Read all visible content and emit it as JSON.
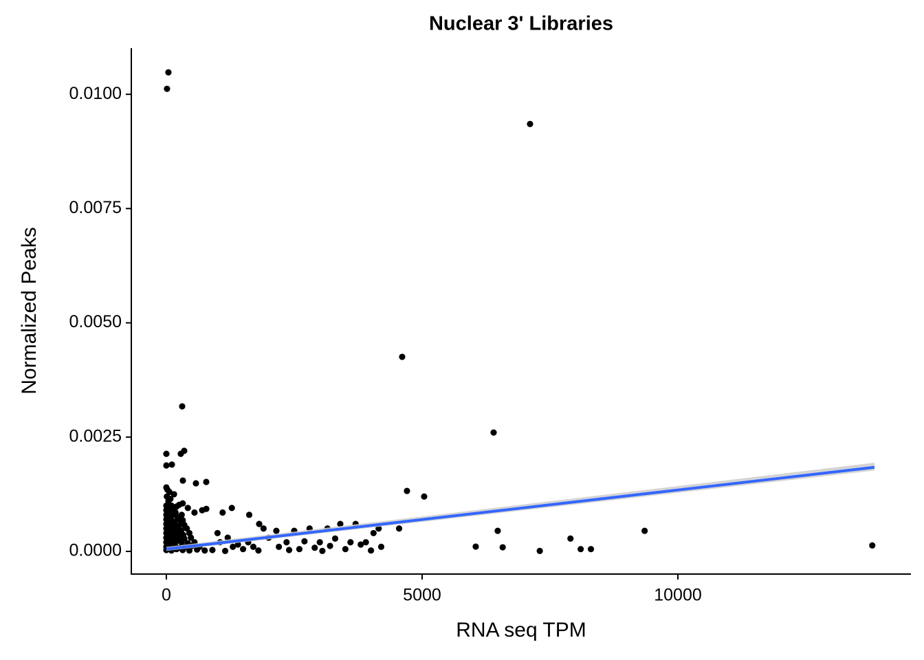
{
  "chart_data": {
    "type": "scatter",
    "title": "Nuclear 3' Libraries",
    "x_label": "RNA seq TPM",
    "y_label": "Normalized Peaks",
    "color": "#000000",
    "xlim": [
      -685,
      14556
    ],
    "ylim": [
      -0.000496,
      0.01101
    ],
    "xticks": [
      0,
      5000,
      10000
    ],
    "yticks": [
      {
        "value": 0,
        "label": "0.0000"
      },
      {
        "value": 0.0025,
        "label": "0.0025"
      },
      {
        "value": 0.005,
        "label": "0.0050"
      },
      {
        "value": 0.0075,
        "label": "0.0075"
      },
      {
        "value": 0.01,
        "label": "0.0100"
      }
    ],
    "x": [
      40,
      13,
      7110,
      4610,
      309,
      6398,
      0,
      349,
      282,
      0,
      108,
      4704,
      5040,
      323,
      578,
      780,
      6048,
      6478,
      6575,
      7300,
      7900,
      8100,
      8300,
      9350,
      13800,
      0,
      20,
      60,
      10,
      40,
      80,
      150,
      0,
      30,
      100,
      200,
      250,
      0,
      50,
      120,
      180,
      0,
      70,
      140,
      220,
      300,
      0,
      40,
      90,
      160,
      240,
      320,
      0,
      60,
      130,
      200,
      280,
      350,
      0,
      50,
      110,
      170,
      230,
      290,
      400,
      0,
      80,
      150,
      210,
      270,
      330,
      450,
      0,
      40,
      100,
      190,
      260,
      350,
      480,
      0,
      60,
      120,
      200,
      300,
      420,
      550,
      0,
      90,
      180,
      260,
      380,
      500,
      650,
      0,
      100,
      200,
      320,
      450,
      600,
      750,
      900,
      320,
      420,
      550,
      700,
      780,
      1100,
      1280,
      1620,
      1000,
      1050,
      1200,
      1300,
      1400,
      1500,
      1600,
      1700,
      1815,
      1900,
      2000,
      2150,
      2200,
      2350,
      2500,
      2600,
      2700,
      2800,
      2900,
      3000,
      3150,
      3200,
      3300,
      3400,
      3500,
      3600,
      3700,
      3800,
      3900,
      4050,
      4150,
      4200,
      4000,
      4550,
      2400,
      1800,
      1150,
      3050
    ],
    "values": [
      0.01048,
      0.01012,
      0.00935,
      0.004256,
      0.003173,
      0.0026,
      0.002135,
      0.0022,
      0.002135,
      0.00188,
      0.0019,
      0.001323,
      0.0012,
      0.00155,
      0.00149,
      0.00152,
      0.000105,
      0.00045,
      9e-05,
      1e-05,
      0.00028,
      5e-05,
      5e-05,
      0.00045,
      0.00013,
      0.0014,
      0.00135,
      0.0013,
      0.0012,
      0.0011,
      0.00115,
      0.00125,
      0.001,
      0.00095,
      0.001,
      0.00098,
      0.00102,
      0.0009,
      0.00088,
      0.0009,
      0.00085,
      0.0008,
      0.00078,
      0.0008,
      0.00075,
      0.0008,
      0.0007,
      0.00068,
      0.0007,
      0.00065,
      0.0007,
      0.00068,
      0.0006,
      0.00058,
      0.0006,
      0.00055,
      0.0006,
      0.00058,
      0.0005,
      0.00048,
      0.0005,
      0.00045,
      0.0005,
      0.00046,
      0.0005,
      0.0004,
      0.0004,
      0.00038,
      0.0004,
      0.00042,
      0.00036,
      0.0004,
      0.0003,
      0.00028,
      0.0003,
      0.00032,
      0.0003,
      0.00028,
      0.0003,
      0.0002,
      0.00018,
      0.0002,
      0.00022,
      0.0002,
      0.00018,
      0.0002,
      0.0001,
      0.00012,
      0.0001,
      8e-05,
      0.0001,
      0.00012,
      0.0001,
      3e-05,
      2e-05,
      5e-05,
      3e-05,
      2e-05,
      4e-05,
      2e-05,
      3e-05,
      0.00105,
      0.00095,
      0.00085,
      0.0009,
      0.00093,
      0.00085,
      0.00095,
      0.0008,
      0.0004,
      0.0002,
      0.0003,
      0.0001,
      0.00015,
      5e-05,
      0.0002,
      0.0001,
      0.0006,
      0.0005,
      0.0003,
      0.00045,
      0.0001,
      0.0002,
      0.00045,
      5e-05,
      0.00022,
      0.0005,
      8e-05,
      0.0002,
      0.0005,
      0.00012,
      0.00028,
      0.0006,
      5e-05,
      0.0002,
      0.0006,
      0.00015,
      0.0002,
      0.0004,
      0.0005,
      0.0001,
      2e-05,
      0.0005,
      3e-05,
      2e-05,
      1e-05,
      1e-05
    ],
    "trend": {
      "color": "#3366ff",
      "x": [
        0,
        13844
      ],
      "values": [
        5e-05,
        0.00184
      ]
    },
    "band": {
      "color": "#cccccc",
      "x": [
        0,
        13844
      ],
      "lower": [
        1e-05,
        0.00177
      ],
      "upper": [
        0.0001,
        0.00194
      ]
    }
  }
}
